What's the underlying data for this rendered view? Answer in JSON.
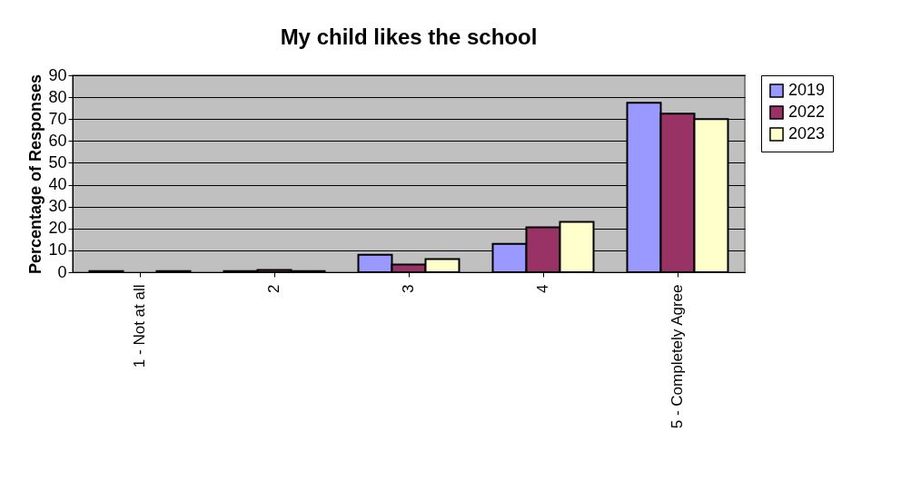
{
  "chart_data": {
    "type": "bar",
    "title": "My child likes the school",
    "ylabel": "Percentage of Responses",
    "categories": [
      "1 - Not at all",
      "2",
      "3",
      "4",
      "5 - Completely Agree"
    ],
    "series": [
      {
        "name": "2019",
        "color": "#9999ff",
        "values": [
          0.5,
          0.5,
          8,
          13,
          77.5
        ]
      },
      {
        "name": "2022",
        "color": "#993366",
        "values": [
          null,
          1,
          3.5,
          20.5,
          72.5
        ]
      },
      {
        "name": "2023",
        "color": "#ffffcc",
        "values": [
          0.5,
          0.5,
          6,
          23,
          70
        ]
      }
    ],
    "ylim": [
      0,
      90
    ],
    "yticks": [
      0,
      10,
      20,
      30,
      40,
      50,
      60,
      70,
      80,
      90
    ],
    "grid": "y",
    "legend": "right"
  }
}
